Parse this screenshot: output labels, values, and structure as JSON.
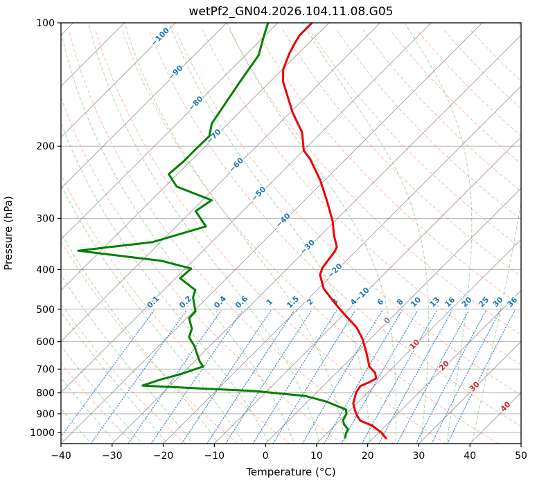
{
  "title": "wetPf2_GN04.2026.104.11.08.G05",
  "axes": {
    "x": {
      "label": "Temperature (°C)",
      "ticks": [
        -40,
        -30,
        -20,
        -10,
        0,
        10,
        20,
        30,
        40,
        50
      ]
    },
    "y": {
      "label": "Pressure (hPa)",
      "ticks": [
        100,
        200,
        300,
        400,
        500,
        600,
        700,
        800,
        900,
        1000
      ]
    }
  },
  "chart_data": {
    "type": "line",
    "subtype": "skew-t-log-p-sounding",
    "title": "wetPf2_GN04.2026.104.11.08.G05",
    "xlabel": "Temperature (°C)",
    "ylabel": "Pressure (hPa)",
    "xlim": [
      -40,
      50
    ],
    "ylim": [
      1050,
      100
    ],
    "skew_degrees": 45,
    "grid": true,
    "x_ticks": [
      -40,
      -30,
      -20,
      -10,
      0,
      10,
      20,
      30,
      40,
      50
    ],
    "p_ticks": [
      100,
      200,
      300,
      400,
      500,
      600,
      700,
      800,
      900,
      1000
    ],
    "series": [
      {
        "name": "temperature",
        "color": "#ee0000",
        "width": 3,
        "points_p_T": [
          [
            100,
            -73.3
          ],
          [
            107,
            -73.3
          ],
          [
            112,
            -72.7
          ],
          [
            119,
            -71.7
          ],
          [
            130,
            -69.8
          ],
          [
            139,
            -67.5
          ],
          [
            166,
            -59.4
          ],
          [
            185,
            -53.8
          ],
          [
            205,
            -49.9
          ],
          [
            215,
            -47.0
          ],
          [
            242,
            -40.9
          ],
          [
            272,
            -35.5
          ],
          [
            305,
            -30.4
          ],
          [
            330,
            -27.4
          ],
          [
            352,
            -24.6
          ],
          [
            361,
            -24.1
          ],
          [
            396,
            -23.3
          ],
          [
            412,
            -22.4
          ],
          [
            445,
            -19.0
          ],
          [
            475,
            -15.0
          ],
          [
            506,
            -11.0
          ],
          [
            554,
            -4.9
          ],
          [
            590,
            -1.6
          ],
          [
            632,
            1.5
          ],
          [
            691,
            5.3
          ],
          [
            715,
            7.6
          ],
          [
            738,
            8.9
          ],
          [
            755,
            8.2
          ],
          [
            770,
            7.3
          ],
          [
            798,
            7.7
          ],
          [
            823,
            8.5
          ],
          [
            849,
            9.3
          ],
          [
            879,
            10.8
          ],
          [
            907,
            12.3
          ],
          [
            936,
            14.1
          ],
          [
            961,
            17.3
          ],
          [
            1000,
            20.5
          ],
          [
            1032,
            22.5
          ]
        ]
      },
      {
        "name": "dewpoint",
        "color": "#008000",
        "width": 3,
        "points_p_T": [
          [
            100,
            -81.9
          ],
          [
            107,
            -80.3
          ],
          [
            120,
            -77.4
          ],
          [
            140,
            -75.8
          ],
          [
            164,
            -74.0
          ],
          [
            176,
            -73.2
          ],
          [
            189,
            -71.2
          ],
          [
            203,
            -71.3
          ],
          [
            218,
            -71.3
          ],
          [
            234,
            -71.7
          ],
          [
            251,
            -67.7
          ],
          [
            271,
            -58.2
          ],
          [
            288,
            -59.2
          ],
          [
            314,
            -54.2
          ],
          [
            343,
            -61.6
          ],
          [
            360,
            -74.4
          ],
          [
            381,
            -56.1
          ],
          [
            398,
            -48.8
          ],
          [
            420,
            -49.1
          ],
          [
            449,
            -43.8
          ],
          [
            468,
            -42.8
          ],
          [
            506,
            -39.6
          ],
          [
            526,
            -39.5
          ],
          [
            558,
            -36.9
          ],
          [
            585,
            -35.8
          ],
          [
            615,
            -33.0
          ],
          [
            670,
            -29.0
          ],
          [
            690,
            -27.3
          ],
          [
            718,
            -30.0
          ],
          [
            743,
            -33.1
          ],
          [
            768,
            -35.4
          ],
          [
            781,
            -23.3
          ],
          [
            792,
            -12.3
          ],
          [
            814,
            -1.6
          ],
          [
            839,
            3.5
          ],
          [
            866,
            7.3
          ],
          [
            879,
            9.1
          ],
          [
            900,
            10.0
          ],
          [
            933,
            10.6
          ],
          [
            955,
            11.6
          ],
          [
            981,
            13.3
          ],
          [
            1007,
            13.8
          ],
          [
            1028,
            14.4
          ]
        ]
      }
    ],
    "background": {
      "isotherms": {
        "start_C": -120,
        "end_C": 50,
        "step_C": 10,
        "color": "rgba(80,80,80,0.5)"
      },
      "isotherm_labels": [
        {
          "t": -100,
          "p": 108
        },
        {
          "t": -90,
          "p": 132
        },
        {
          "t": -80,
          "p": 157
        },
        {
          "t": -70,
          "p": 189
        },
        {
          "t": -60,
          "p": 222
        },
        {
          "t": -50,
          "p": 261
        },
        {
          "t": -40,
          "p": 303
        },
        {
          "t": -30,
          "p": 352
        },
        {
          "t": -20,
          "p": 402
        },
        {
          "t": -10,
          "p": 460
        },
        {
          "t": 0,
          "p": 532
        },
        {
          "t": 10,
          "p": 608
        },
        {
          "t": 20,
          "p": 686
        },
        {
          "t": 30,
          "p": 771
        },
        {
          "t": 40,
          "p": 863
        }
      ],
      "label_colors": {
        "negative": "#1f77b4",
        "zero": "#7f7f7f",
        "positive": "#d62728"
      },
      "dry_adiabats": {
        "theta_start_K": 243,
        "theta_end_K": 443,
        "step_K": 10,
        "color": "rgba(242,116,85,0.45)"
      },
      "moist_adiabats": {
        "t0_start_C": -40,
        "t0_end_C": 40,
        "step_C": 5,
        "color": "rgba(44,150,44,0.38)"
      },
      "mixing_ratio_g_kg": [
        0.1,
        0.2,
        0.4,
        0.6,
        1,
        1.5,
        2,
        3,
        4,
        6,
        8,
        10,
        13,
        16,
        20,
        25,
        30,
        36
      ],
      "mixing_line_color": "rgba(36,118,189,0.8)",
      "mixing_label_color": "#1f77b4",
      "mixing_label_p": 485,
      "mixing_lines_top_p": 500,
      "gridline_color": "#b4b4b4"
    }
  }
}
